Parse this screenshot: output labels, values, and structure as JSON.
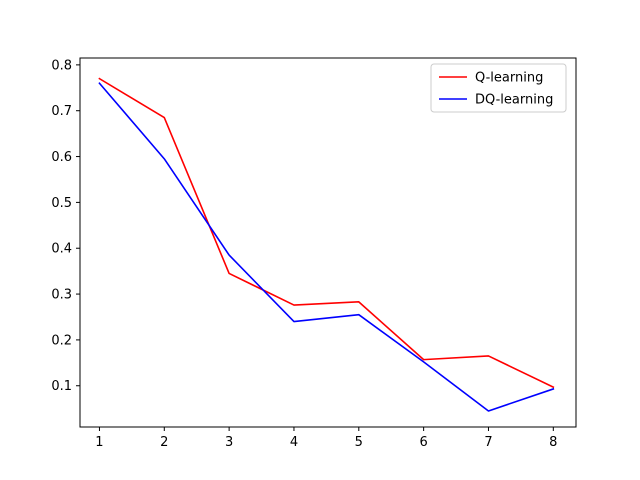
{
  "chart_data": {
    "type": "line",
    "title": "",
    "xlabel": "",
    "ylabel": "",
    "x": [
      1,
      2,
      3,
      4,
      5,
      6,
      7,
      8
    ],
    "xlim": [
      0.7,
      8.35
    ],
    "ylim": [
      0.01,
      0.815
    ],
    "xticks": [
      "1",
      "2",
      "3",
      "4",
      "5",
      "6",
      "7",
      "8"
    ],
    "yticks": [
      "0.1",
      "0.2",
      "0.3",
      "0.4",
      "0.5",
      "0.6",
      "0.7",
      "0.8"
    ],
    "grid": false,
    "legend_position": "top-right",
    "series": [
      {
        "name": "Q-learning",
        "color": "#ff0000",
        "values": [
          0.77,
          0.685,
          0.345,
          0.276,
          0.283,
          0.157,
          0.165,
          0.097
        ]
      },
      {
        "name": "DQ-learning",
        "color": "#0000ff",
        "values": [
          0.76,
          0.595,
          0.385,
          0.24,
          0.255,
          0.152,
          0.045,
          0.093
        ]
      }
    ]
  }
}
